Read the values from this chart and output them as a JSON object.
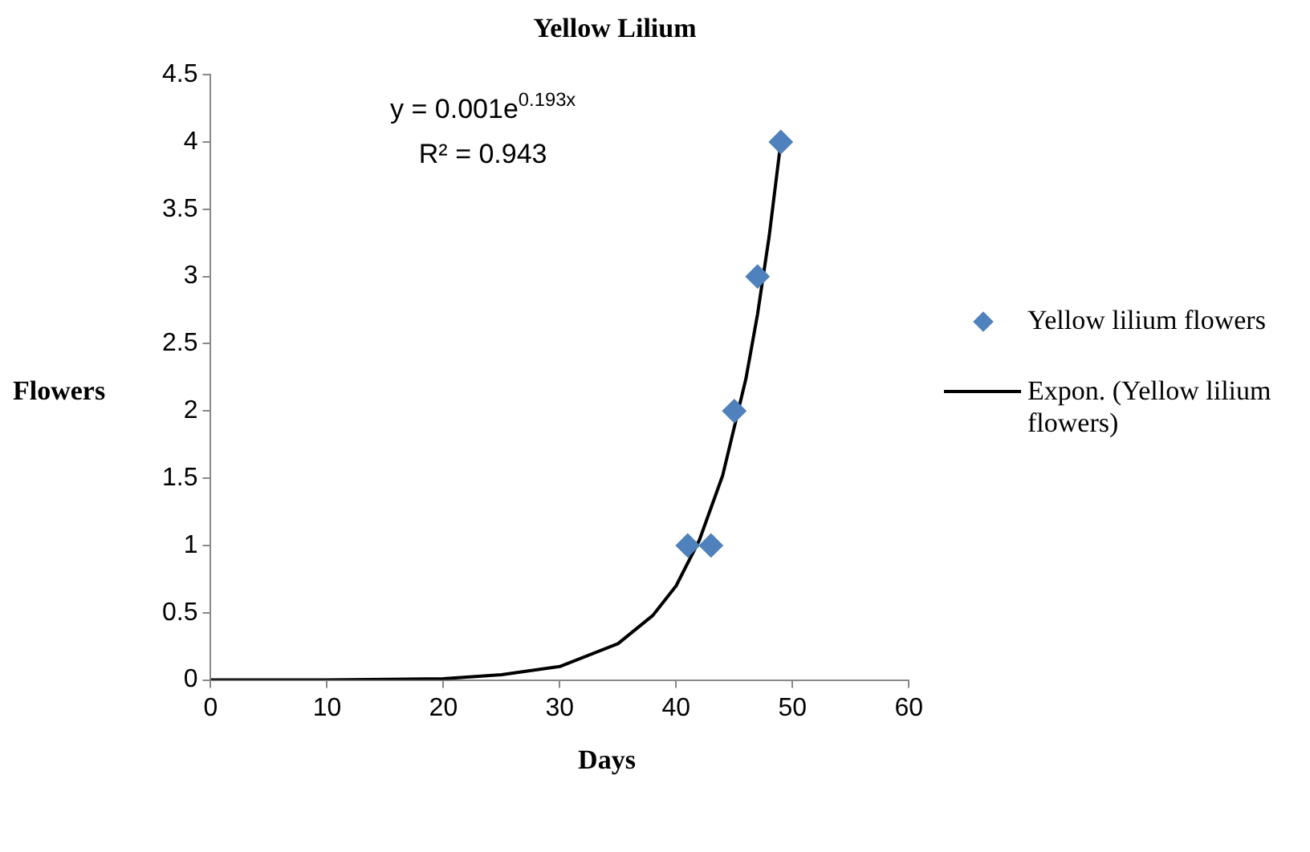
{
  "chart_data": {
    "type": "scatter",
    "title": "Yellow Lilium",
    "xlabel": "Days",
    "ylabel": "Flowers",
    "xlim": [
      0,
      60
    ],
    "xticks": [
      0,
      10,
      20,
      30,
      40,
      50,
      60
    ],
    "ylim": [
      0,
      4.5
    ],
    "yticks": [
      0,
      0.5,
      1,
      1.5,
      2,
      2.5,
      3,
      3.5,
      4,
      4.5
    ],
    "grid": false,
    "legend": "right",
    "annotations": [
      "y = 0.001e$^{0.193x}$",
      "R² = 0.943"
    ],
    "series": [
      {
        "name": "Yellow lilium flowers",
        "type": "scatter",
        "marker": "diamond",
        "color": "#4f81bd",
        "x": [
          41,
          43,
          45,
          47,
          49
        ],
        "values": [
          1,
          1,
          2,
          3,
          4
        ]
      },
      {
        "name": "Expon. (Yellow lilium flowers)",
        "type": "line",
        "marker": "none",
        "line_style": "solid",
        "color": "#000000",
        "x": [
          0,
          10,
          20,
          25,
          30,
          35,
          38,
          40,
          42,
          44,
          46,
          47,
          48,
          49
        ],
        "values": [
          0,
          0,
          0.01,
          0.04,
          0.1,
          0.27,
          0.48,
          0.7,
          1.04,
          1.52,
          2.24,
          2.72,
          3.3,
          4
        ]
      }
    ]
  }
}
